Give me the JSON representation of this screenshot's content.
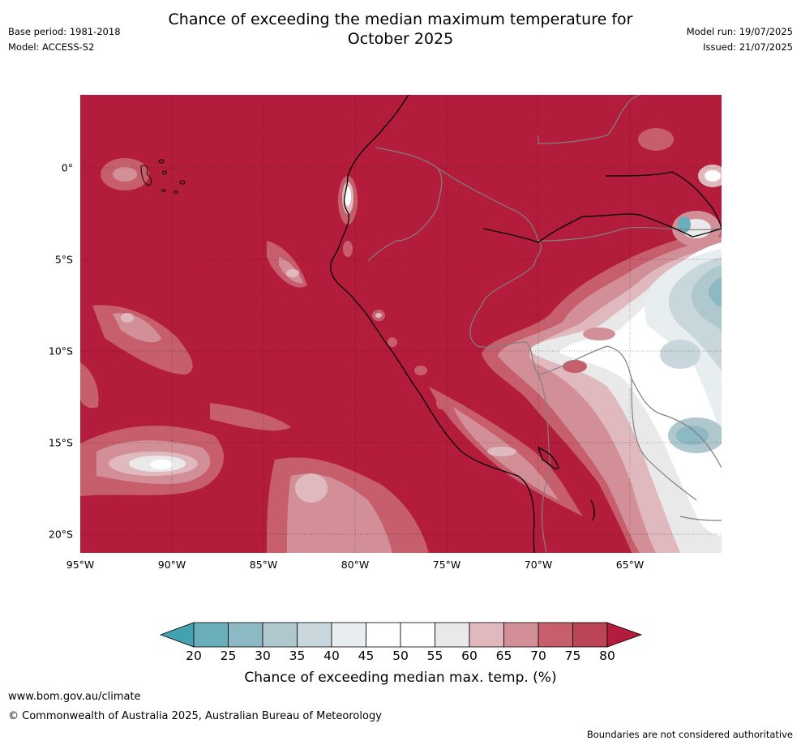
{
  "header": {
    "title_line1": "Chance of exceeding the median maximum temperature for",
    "title_line2": "October 2025",
    "base_period": "Base period: 1981-2018",
    "model": "Model: ACCESS-S2",
    "model_run": "Model run: 19/07/2025",
    "issued": "Issued: 21/07/2025"
  },
  "map": {
    "latitude_labels": [
      "0°",
      "5°S",
      "10°S",
      "15°S",
      "20°S"
    ],
    "longitude_labels": [
      "95°W",
      "90°W",
      "85°W",
      "80°W",
      "75°W",
      "70°W",
      "65°W"
    ],
    "colors": {
      "background": "#b31c3a",
      "coastline": "#000000",
      "border": "#808080"
    }
  },
  "colorbar": {
    "title": "Chance of exceeding median max. temp. (%)",
    "tick_labels": [
      "20",
      "25",
      "30",
      "35",
      "40",
      "45",
      "50",
      "55",
      "60",
      "65",
      "70",
      "75",
      "80"
    ],
    "colors": [
      "#44a1b0",
      "#6aadbb",
      "#8db9c4",
      "#aec8ce",
      "#c8d7dc",
      "#e8eef0",
      "#ffffff",
      "#ffffff",
      "#e9e9e9",
      "#e0b9bf",
      "#d38f98",
      "#c65e6c",
      "#bb4457",
      "#b31c3a"
    ]
  },
  "footer": {
    "website": "www.bom.gov.au/climate",
    "copyright": "© Commonwealth of Australia 2025, Australian Bureau of Meteorology",
    "disclaimer": "Boundaries are not considered authoritative"
  }
}
